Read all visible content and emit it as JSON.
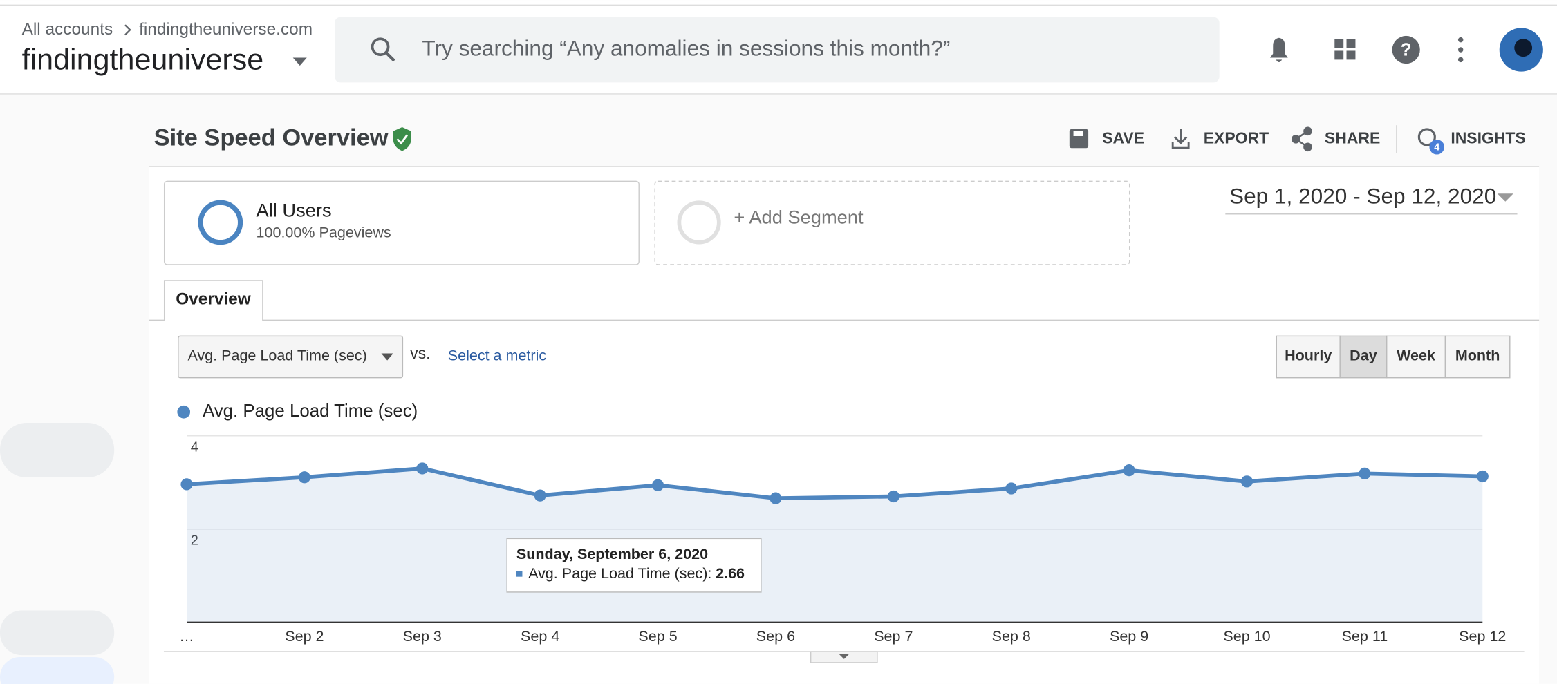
{
  "header": {
    "breadcrumb": [
      "All accounts",
      "findingtheuniverse.com"
    ],
    "account": "findingtheuniverse",
    "search_placeholder": "Try searching “Any anomalies in sessions this month?”"
  },
  "report": {
    "title": "Site Speed Overview",
    "actions": [
      "SAVE",
      "EXPORT",
      "SHARE",
      "INSIGHTS"
    ],
    "insights_badge": 4,
    "segment": {
      "name": "All Users",
      "detail": "100.00% Pageviews"
    },
    "add_segment": "+ Add Segment",
    "date_range": "Sep 1, 2020 - Sep 12, 2020",
    "tab": "Overview",
    "metric": "Avg. Page Load Time (sec)",
    "vs": "vs.",
    "select_metric": "Select a metric",
    "granularity": [
      "Hourly",
      "Day",
      "Week",
      "Month"
    ]
  },
  "chart_data": {
    "type": "line",
    "x": [
      "…",
      "Sep 2",
      "Sep 3",
      "Sep 4",
      "Sep 5",
      "Sep 6",
      "Sep 7",
      "Sep 8",
      "Sep 9",
      "Sep 10",
      "Sep 11",
      "Sep 12"
    ],
    "series": [
      {
        "name": "Avg. Page Load Time (sec)",
        "color": "#4f86c0",
        "values": [
          2.96,
          3.11,
          3.3,
          2.72,
          2.94,
          2.66,
          2.7,
          2.87,
          3.26,
          3.02,
          3.19,
          3.13
        ]
      }
    ],
    "ylim": [
      0,
      4
    ],
    "yticks": [
      2,
      4
    ],
    "grid": true,
    "tooltip": {
      "title": "Sunday, September 6, 2020",
      "label": "Avg. Page Load Time (sec):"
    }
  }
}
